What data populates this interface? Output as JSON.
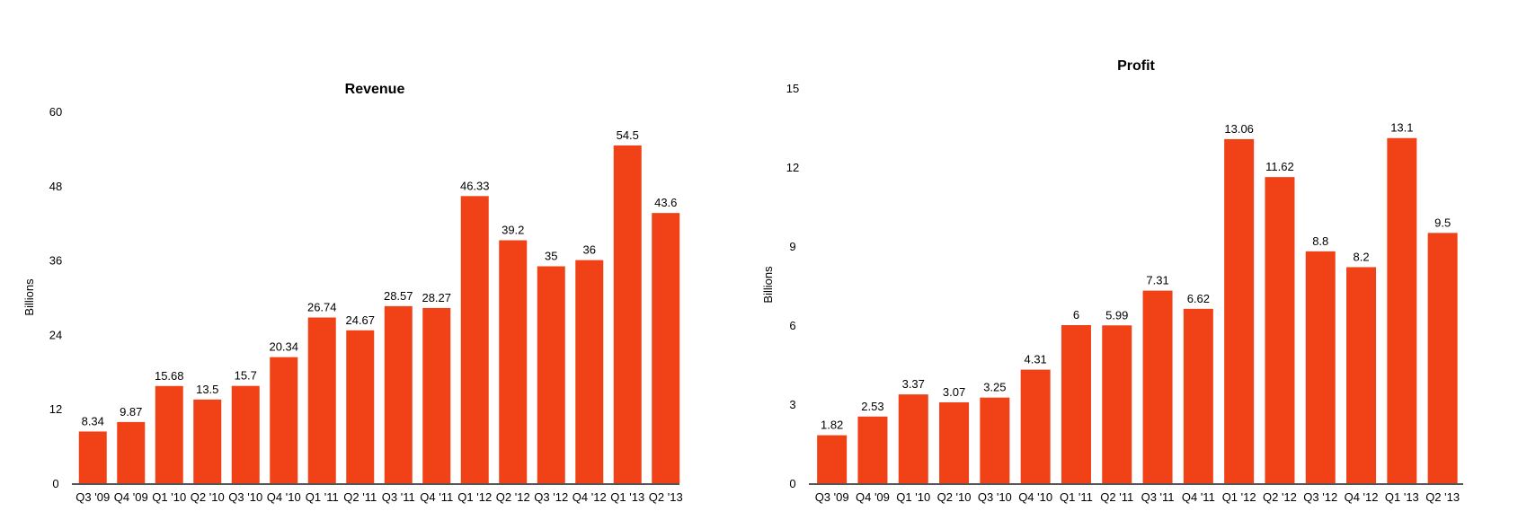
{
  "colors": {
    "bar": "#f04216",
    "baseline": "#555555",
    "text": "#000000"
  },
  "chart_data": [
    {
      "type": "bar",
      "title": "Revenue",
      "xlabel": "",
      "ylabel": "Billions",
      "ylim": [
        0,
        60
      ],
      "yticks": [
        "0",
        "12",
        "24",
        "36",
        "48",
        "60"
      ],
      "grid": false,
      "legend": "none",
      "categories": [
        "Q3 '09",
        "Q4 '09",
        "Q1 '10",
        "Q2 '10",
        "Q3 '10",
        "Q4 '10",
        "Q1 '11",
        "Q2 '11",
        "Q3 '11",
        "Q4 '11",
        "Q1 '12",
        "Q2 '12",
        "Q3 '12",
        "Q4 '12",
        "Q1 '13",
        "Q2 '13"
      ],
      "values": [
        8.34,
        9.87,
        15.68,
        13.5,
        15.7,
        20.34,
        26.74,
        24.67,
        28.57,
        28.27,
        46.33,
        39.2,
        35,
        36,
        54.5,
        43.6
      ],
      "data_labels": [
        "8.34",
        "9.87",
        "15.68",
        "13.5",
        "15.7",
        "20.34",
        "26.74",
        "24.67",
        "28.57",
        "28.27",
        "46.33",
        "39.2",
        "35",
        "36",
        "54.5",
        "43.6"
      ]
    },
    {
      "type": "bar",
      "title": "Profit",
      "xlabel": "",
      "ylabel": "Billions",
      "ylim": [
        0,
        15
      ],
      "yticks": [
        "0",
        "3",
        "6",
        "9",
        "12",
        "15"
      ],
      "grid": false,
      "legend": "none",
      "categories": [
        "Q3 '09",
        "Q4 '09",
        "Q1 '10",
        "Q2 '10",
        "Q3 '10",
        "Q4 '10",
        "Q1 '11",
        "Q2 '11",
        "Q3 '11",
        "Q4 '11",
        "Q1 '12",
        "Q2 '12",
        "Q3 '12",
        "Q4 '12",
        "Q1 '13",
        "Q2 '13"
      ],
      "values": [
        1.82,
        2.53,
        3.37,
        3.07,
        3.25,
        4.31,
        6,
        5.99,
        7.31,
        6.62,
        13.06,
        11.62,
        8.8,
        8.2,
        13.1,
        9.5
      ],
      "data_labels": [
        "1.82",
        "2.53",
        "3.37",
        "3.07",
        "3.25",
        "4.31",
        "6",
        "5.99",
        "7.31",
        "6.62",
        "13.06",
        "11.62",
        "8.8",
        "8.2",
        "13.1",
        "9.5"
      ]
    }
  ]
}
